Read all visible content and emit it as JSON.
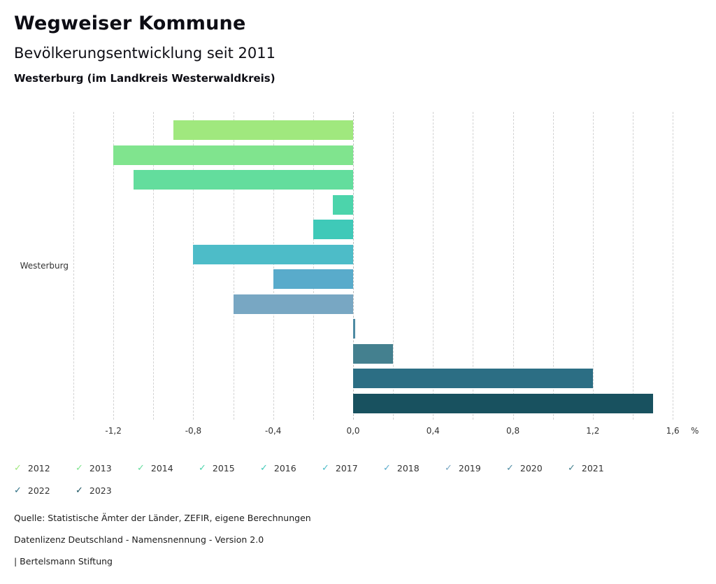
{
  "header": {
    "title": "Wegweiser Kommune",
    "subtitle": "Bevölkerungsentwicklung seit 2011",
    "region": "Westerburg (im Landkreis Westerwaldkreis)"
  },
  "chart_data": {
    "type": "bar",
    "orientation": "horizontal",
    "title": "Bevölkerungsentwicklung seit 2011",
    "category_label": "Westerburg",
    "unit": "%",
    "xlim": [
      -1.4,
      1.75
    ],
    "grid": {
      "min": -1.4,
      "max": 1.6,
      "step": 0.2,
      "style": "dashed"
    },
    "legend_position": "bottom",
    "ticks": [
      {
        "v": -1.2,
        "label": "-1,2"
      },
      {
        "v": -0.8,
        "label": "-0,8"
      },
      {
        "v": -0.4,
        "label": "-0,4"
      },
      {
        "v": 0.0,
        "label": "0,0"
      },
      {
        "v": 0.4,
        "label": "0,4"
      },
      {
        "v": 0.8,
        "label": "0,8"
      },
      {
        "v": 1.2,
        "label": "1,2"
      },
      {
        "v": 1.6,
        "label": "1,6"
      }
    ],
    "series": [
      {
        "name": "2012",
        "value": -0.9,
        "color": "#a0e87e"
      },
      {
        "name": "2013",
        "value": -1.2,
        "color": "#80e48e"
      },
      {
        "name": "2014",
        "value": -1.1,
        "color": "#63dd9d"
      },
      {
        "name": "2015",
        "value": -0.1,
        "color": "#4cd4ab"
      },
      {
        "name": "2016",
        "value": -0.2,
        "color": "#3fc9b8"
      },
      {
        "name": "2017",
        "value": -0.8,
        "color": "#4dbcc8"
      },
      {
        "name": "2018",
        "value": -0.4,
        "color": "#59abcb"
      },
      {
        "name": "2019",
        "value": -0.6,
        "color": "#78a7c3"
      },
      {
        "name": "2020",
        "value": 0.01,
        "color": "#4e8ba3"
      },
      {
        "name": "2021",
        "value": 0.2,
        "color": "#44808f"
      },
      {
        "name": "2022",
        "value": 1.2,
        "color": "#2c6e84"
      },
      {
        "name": "2023",
        "value": 1.5,
        "color": "#18515f"
      }
    ]
  },
  "footer": {
    "source": "Quelle: Statistische Ämter der Länder, ZEFIR, eigene Berechnungen",
    "license": "Datenlizenz Deutschland - Namensnennung - Version 2.0",
    "attribution": "| Bertelsmann Stiftung"
  }
}
